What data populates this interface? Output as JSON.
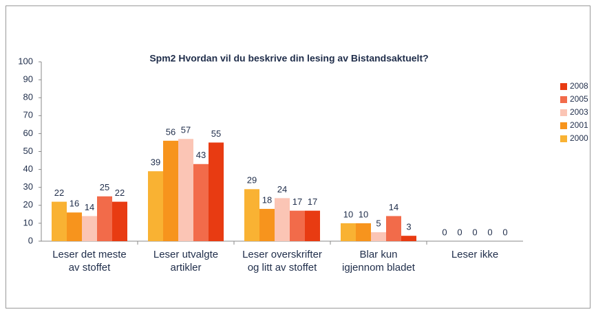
{
  "chart_data": {
    "type": "bar",
    "title": "Spm2 Hvordan vil du beskrive din lesing av Bistandsaktuelt?",
    "categories": [
      "Leser det meste av stoffet",
      "Leser utvalgte artikler",
      "Leser overskrifter og litt av stoffet",
      "Blar kun igjennom bladet",
      "Leser ikke"
    ],
    "series": [
      {
        "name": "2000",
        "color": "#f9b233",
        "values": [
          22,
          39,
          29,
          10,
          0
        ]
      },
      {
        "name": "2001",
        "color": "#f7941d",
        "values": [
          16,
          56,
          18,
          10,
          0
        ]
      },
      {
        "name": "2003",
        "color": "#fbc5b5",
        "values": [
          14,
          57,
          24,
          5,
          0
        ]
      },
      {
        "name": "2005",
        "color": "#f26b4a",
        "values": [
          25,
          43,
          17,
          14,
          0
        ]
      },
      {
        "name": "2008",
        "color": "#e83b12",
        "values": [
          22,
          55,
          17,
          3,
          0
        ]
      }
    ],
    "ylim": [
      0,
      100
    ],
    "yticks": [
      0,
      10,
      20,
      30,
      40,
      50,
      60,
      70,
      80,
      90,
      100
    ],
    "legend": "right"
  }
}
